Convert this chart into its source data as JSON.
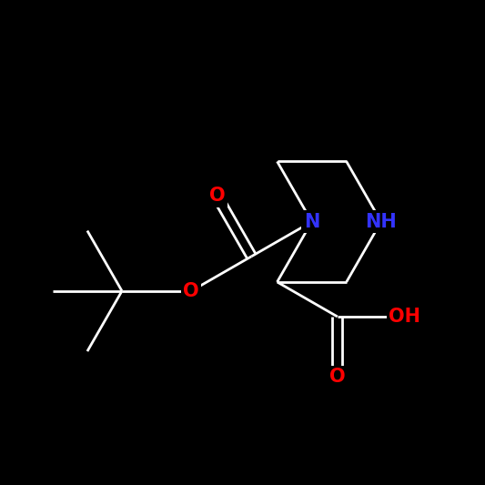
{
  "background_color": "#000000",
  "bond_color": "#ffffff",
  "atom_colors": {
    "N": "#3333ff",
    "O": "#ff0000",
    "C": "#ffffff"
  },
  "figsize": [
    5.33,
    5.33
  ],
  "dpi": 100,
  "lw": 2.0,
  "fontsize": 15
}
